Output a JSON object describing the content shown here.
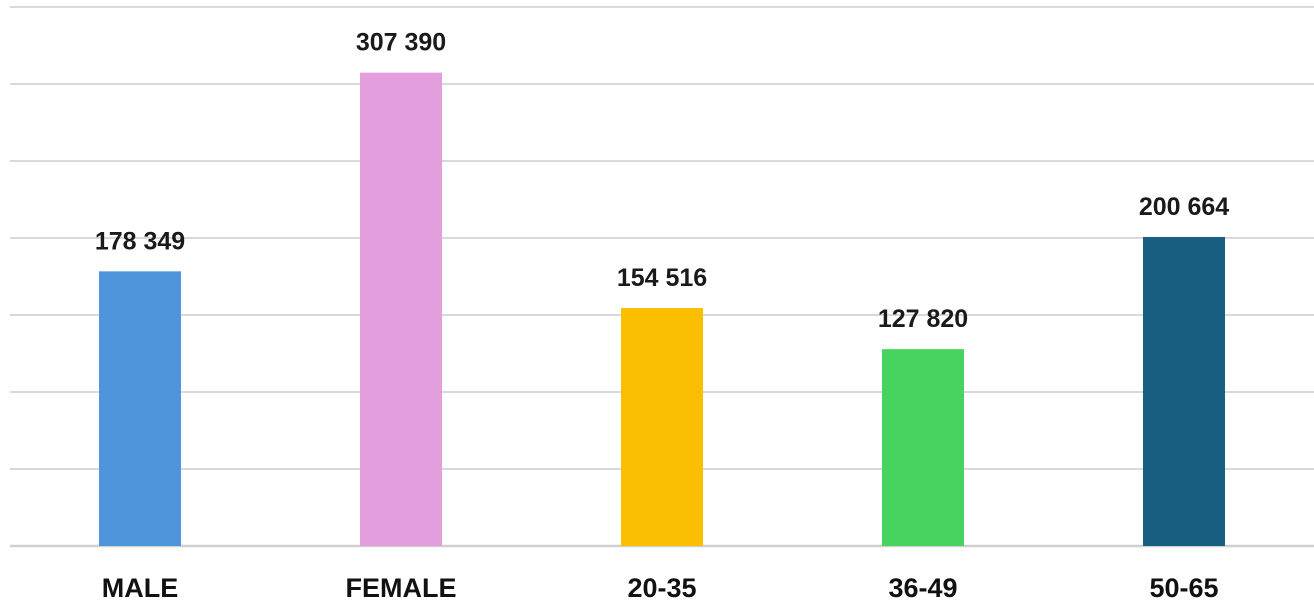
{
  "chart_data": {
    "type": "bar",
    "categories": [
      "MALE",
      "FEMALE",
      "20-35",
      "36-49",
      "50-65"
    ],
    "values": [
      178349,
      307390,
      154516,
      127820,
      200664
    ],
    "value_labels": [
      "178 349",
      "307 390",
      "154 516",
      "127 820",
      "200 664"
    ],
    "colors": [
      "#4f95db",
      "#e39fdd",
      "#fcbe00",
      "#47d45e",
      "#175e80"
    ],
    "title": "",
    "xlabel": "",
    "ylabel": "",
    "ylim": [
      0,
      350000
    ],
    "y_gridline_step": 50000,
    "grid": true,
    "legend": "none"
  }
}
